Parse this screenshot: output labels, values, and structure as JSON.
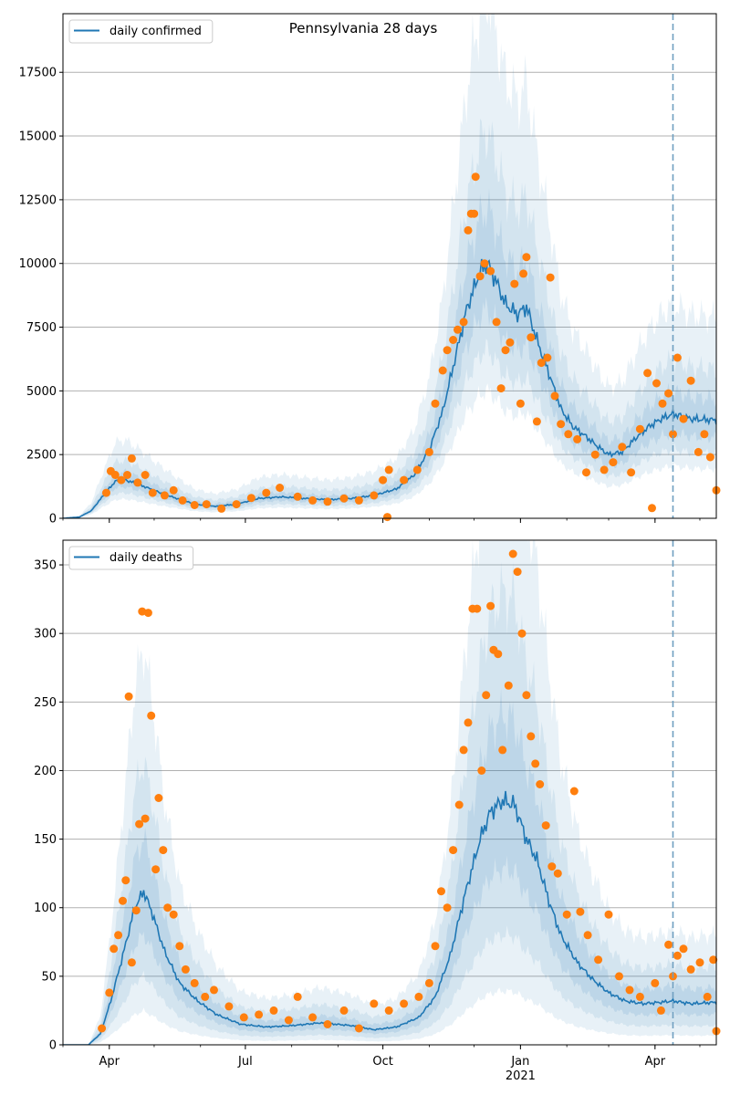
{
  "figure": {
    "title": "Pennsylvania 28 days"
  },
  "colors": {
    "line": "#1f77b4",
    "points": "#ff7f0e",
    "band": "#1f77b4",
    "grid": "#b0b0b0",
    "vline": "#6f9fc0"
  },
  "x_axis": {
    "start": "2020-03-01",
    "end": "2021-05-12",
    "major_ticks": [
      {
        "date": "2020-04-01",
        "label": "Apr"
      },
      {
        "date": "2020-07-01",
        "label": "Jul"
      },
      {
        "date": "2020-10-01",
        "label": "Oct"
      },
      {
        "date": "2021-01-01",
        "label": "Jan"
      },
      {
        "date": "2021-04-01",
        "label": "Apr"
      }
    ],
    "year_label": {
      "date": "2021-01-01",
      "label": "2021"
    },
    "dashed_line_date": "2021-04-13"
  },
  "chart_data": [
    {
      "type": "line",
      "name": "daily confirmed",
      "legend": "top-left",
      "grid": "horizontal",
      "ylim": [
        0,
        19800
      ],
      "yticks": [
        0,
        2500,
        5000,
        7500,
        10000,
        12500,
        15000,
        17500
      ],
      "trend": [
        [
          "2020-03-01",
          0
        ],
        [
          "2020-03-12",
          50
        ],
        [
          "2020-03-20",
          300
        ],
        [
          "2020-03-28",
          900
        ],
        [
          "2020-04-05",
          1450
        ],
        [
          "2020-04-12",
          1500
        ],
        [
          "2020-04-22",
          1300
        ],
        [
          "2020-05-03",
          1050
        ],
        [
          "2020-05-15",
          800
        ],
        [
          "2020-05-28",
          560
        ],
        [
          "2020-06-10",
          470
        ],
        [
          "2020-06-25",
          550
        ],
        [
          "2020-07-10",
          780
        ],
        [
          "2020-07-25",
          840
        ],
        [
          "2020-08-10",
          780
        ],
        [
          "2020-08-25",
          730
        ],
        [
          "2020-09-10",
          780
        ],
        [
          "2020-09-25",
          900
        ],
        [
          "2020-10-10",
          1150
        ],
        [
          "2020-10-22",
          1700
        ],
        [
          "2020-11-01",
          2700
        ],
        [
          "2020-11-10",
          4200
        ],
        [
          "2020-11-18",
          6200
        ],
        [
          "2020-11-26",
          8200
        ],
        [
          "2020-12-05",
          9700
        ],
        [
          "2020-12-10",
          10000
        ],
        [
          "2020-12-15",
          9400
        ],
        [
          "2020-12-22",
          8400
        ],
        [
          "2020-12-30",
          8000
        ],
        [
          "2021-01-05",
          8300
        ],
        [
          "2021-01-12",
          7000
        ],
        [
          "2021-01-20",
          5700
        ],
        [
          "2021-01-28",
          4300
        ],
        [
          "2021-02-05",
          3600
        ],
        [
          "2021-02-14",
          3200
        ],
        [
          "2021-02-22",
          2800
        ],
        [
          "2021-03-01",
          2500
        ],
        [
          "2021-03-10",
          2600
        ],
        [
          "2021-03-20",
          3200
        ],
        [
          "2021-03-28",
          3600
        ],
        [
          "2021-04-05",
          3900
        ],
        [
          "2021-04-13",
          4100
        ],
        [
          "2021-04-25",
          3900
        ],
        [
          "2021-05-12",
          3850
        ]
      ],
      "band_inner": [
        0.82,
        1.22
      ],
      "band_mid": [
        0.66,
        1.52
      ],
      "band_outer": [
        0.5,
        2.05
      ],
      "points": [
        [
          "2020-03-30",
          1000
        ],
        [
          "2020-04-02",
          1850
        ],
        [
          "2020-04-05",
          1700
        ],
        [
          "2020-04-09",
          1500
        ],
        [
          "2020-04-13",
          1700
        ],
        [
          "2020-04-16",
          2350
        ],
        [
          "2020-04-20",
          1400
        ],
        [
          "2020-04-25",
          1700
        ],
        [
          "2020-04-30",
          1000
        ],
        [
          "2020-05-08",
          900
        ],
        [
          "2020-05-14",
          1100
        ],
        [
          "2020-05-20",
          700
        ],
        [
          "2020-05-28",
          520
        ],
        [
          "2020-06-05",
          550
        ],
        [
          "2020-06-15",
          380
        ],
        [
          "2020-06-25",
          550
        ],
        [
          "2020-07-05",
          800
        ],
        [
          "2020-07-15",
          1000
        ],
        [
          "2020-07-24",
          1200
        ],
        [
          "2020-08-05",
          850
        ],
        [
          "2020-08-15",
          700
        ],
        [
          "2020-08-25",
          650
        ],
        [
          "2020-09-05",
          780
        ],
        [
          "2020-09-15",
          700
        ],
        [
          "2020-09-25",
          900
        ],
        [
          "2020-10-01",
          1500
        ],
        [
          "2020-10-05",
          1900
        ],
        [
          "2020-10-04",
          50
        ],
        [
          "2020-10-15",
          1500
        ],
        [
          "2020-10-24",
          1900
        ],
        [
          "2020-11-01",
          2600
        ],
        [
          "2020-11-05",
          4500
        ],
        [
          "2020-11-10",
          5800
        ],
        [
          "2020-11-13",
          6600
        ],
        [
          "2020-11-17",
          7000
        ],
        [
          "2020-11-20",
          7400
        ],
        [
          "2020-11-24",
          7700
        ],
        [
          "2020-11-27",
          11300
        ],
        [
          "2020-11-29",
          11950
        ],
        [
          "2020-12-01",
          11950
        ],
        [
          "2020-12-02",
          13400
        ],
        [
          "2020-12-05",
          9500
        ],
        [
          "2020-12-08",
          10000
        ],
        [
          "2020-12-12",
          9700
        ],
        [
          "2020-12-16",
          7700
        ],
        [
          "2020-12-19",
          5100
        ],
        [
          "2020-12-22",
          6600
        ],
        [
          "2020-12-25",
          6900
        ],
        [
          "2020-12-28",
          9200
        ],
        [
          "2021-01-01",
          4500
        ],
        [
          "2021-01-03",
          9600
        ],
        [
          "2021-01-05",
          10250
        ],
        [
          "2021-01-08",
          7100
        ],
        [
          "2021-01-12",
          3800
        ],
        [
          "2021-01-15",
          6100
        ],
        [
          "2021-01-19",
          6300
        ],
        [
          "2021-01-21",
          9450
        ],
        [
          "2021-01-24",
          4800
        ],
        [
          "2021-01-28",
          3700
        ],
        [
          "2021-02-02",
          3300
        ],
        [
          "2021-02-08",
          3100
        ],
        [
          "2021-02-14",
          1800
        ],
        [
          "2021-02-20",
          2500
        ],
        [
          "2021-02-26",
          1900
        ],
        [
          "2021-03-04",
          2200
        ],
        [
          "2021-03-10",
          2800
        ],
        [
          "2021-03-16",
          1800
        ],
        [
          "2021-03-22",
          3500
        ],
        [
          "2021-03-27",
          5700
        ],
        [
          "2021-03-30",
          400
        ],
        [
          "2021-04-02",
          5300
        ],
        [
          "2021-04-06",
          4500
        ],
        [
          "2021-04-10",
          4900
        ],
        [
          "2021-04-13",
          3300
        ],
        [
          "2021-04-16",
          6300
        ],
        [
          "2021-04-20",
          3900
        ],
        [
          "2021-04-25",
          5400
        ],
        [
          "2021-04-30",
          2600
        ],
        [
          "2021-05-04",
          3300
        ],
        [
          "2021-05-08",
          2400
        ],
        [
          "2021-05-12",
          1100
        ]
      ]
    },
    {
      "type": "line",
      "name": "daily deaths",
      "legend": "top-left",
      "grid": "horizontal",
      "ylim": [
        0,
        368
      ],
      "yticks": [
        0,
        50,
        100,
        150,
        200,
        250,
        300,
        350
      ],
      "trend": [
        [
          "2020-03-01",
          0
        ],
        [
          "2020-03-18",
          0
        ],
        [
          "2020-03-26",
          8
        ],
        [
          "2020-04-02",
          32
        ],
        [
          "2020-04-10",
          65
        ],
        [
          "2020-04-18",
          100
        ],
        [
          "2020-04-24",
          112
        ],
        [
          "2020-04-30",
          95
        ],
        [
          "2020-05-08",
          68
        ],
        [
          "2020-05-18",
          45
        ],
        [
          "2020-05-30",
          32
        ],
        [
          "2020-06-12",
          22
        ],
        [
          "2020-06-28",
          15
        ],
        [
          "2020-07-15",
          13
        ],
        [
          "2020-08-01",
          14
        ],
        [
          "2020-08-20",
          16
        ],
        [
          "2020-09-10",
          14
        ],
        [
          "2020-09-25",
          11
        ],
        [
          "2020-10-10",
          13
        ],
        [
          "2020-10-25",
          20
        ],
        [
          "2020-11-05",
          35
        ],
        [
          "2020-11-15",
          65
        ],
        [
          "2020-11-25",
          110
        ],
        [
          "2020-12-05",
          150
        ],
        [
          "2020-12-12",
          170
        ],
        [
          "2020-12-20",
          178
        ],
        [
          "2020-12-28",
          175
        ],
        [
          "2021-01-05",
          150
        ],
        [
          "2021-01-12",
          135
        ],
        [
          "2021-01-20",
          105
        ],
        [
          "2021-01-28",
          80
        ],
        [
          "2021-02-08",
          60
        ],
        [
          "2021-02-18",
          48
        ],
        [
          "2021-03-01",
          38
        ],
        [
          "2021-03-12",
          32
        ],
        [
          "2021-03-24",
          30
        ],
        [
          "2021-04-05",
          31
        ],
        [
          "2021-04-13",
          32
        ],
        [
          "2021-04-25",
          30
        ],
        [
          "2021-05-12",
          31
        ]
      ],
      "band_inner": [
        0.72,
        1.35
      ],
      "band_mid": [
        0.45,
        1.85
      ],
      "band_outer": [
        0.22,
        2.6
      ],
      "points": [
        [
          "2020-03-27",
          12
        ],
        [
          "2020-04-01",
          38
        ],
        [
          "2020-04-04",
          70
        ],
        [
          "2020-04-07",
          80
        ],
        [
          "2020-04-10",
          105
        ],
        [
          "2020-04-12",
          120
        ],
        [
          "2020-04-14",
          254
        ],
        [
          "2020-04-16",
          60
        ],
        [
          "2020-04-19",
          98
        ],
        [
          "2020-04-21",
          161
        ],
        [
          "2020-04-23",
          316
        ],
        [
          "2020-04-25",
          165
        ],
        [
          "2020-04-27",
          315
        ],
        [
          "2020-04-29",
          240
        ],
        [
          "2020-05-02",
          128
        ],
        [
          "2020-05-04",
          180
        ],
        [
          "2020-05-07",
          142
        ],
        [
          "2020-05-10",
          100
        ],
        [
          "2020-05-14",
          95
        ],
        [
          "2020-05-18",
          72
        ],
        [
          "2020-05-22",
          55
        ],
        [
          "2020-05-28",
          45
        ],
        [
          "2020-06-04",
          35
        ],
        [
          "2020-06-10",
          40
        ],
        [
          "2020-06-20",
          28
        ],
        [
          "2020-06-30",
          20
        ],
        [
          "2020-07-10",
          22
        ],
        [
          "2020-07-20",
          25
        ],
        [
          "2020-07-30",
          18
        ],
        [
          "2020-08-05",
          35
        ],
        [
          "2020-08-15",
          20
        ],
        [
          "2020-08-25",
          15
        ],
        [
          "2020-09-05",
          25
        ],
        [
          "2020-09-15",
          12
        ],
        [
          "2020-09-25",
          30
        ],
        [
          "2020-10-05",
          25
        ],
        [
          "2020-10-15",
          30
        ],
        [
          "2020-10-25",
          35
        ],
        [
          "2020-11-01",
          45
        ],
        [
          "2020-11-05",
          72
        ],
        [
          "2020-11-09",
          112
        ],
        [
          "2020-11-13",
          100
        ],
        [
          "2020-11-17",
          142
        ],
        [
          "2020-11-21",
          175
        ],
        [
          "2020-11-24",
          215
        ],
        [
          "2020-11-27",
          235
        ],
        [
          "2020-11-30",
          318
        ],
        [
          "2020-12-03",
          318
        ],
        [
          "2020-12-06",
          200
        ],
        [
          "2020-12-09",
          255
        ],
        [
          "2020-12-12",
          320
        ],
        [
          "2020-12-14",
          288
        ],
        [
          "2020-12-17",
          285
        ],
        [
          "2020-12-20",
          215
        ],
        [
          "2020-12-24",
          262
        ],
        [
          "2020-12-27",
          358
        ],
        [
          "2020-12-30",
          345
        ],
        [
          "2021-01-02",
          300
        ],
        [
          "2021-01-05",
          255
        ],
        [
          "2021-01-08",
          225
        ],
        [
          "2021-01-11",
          205
        ],
        [
          "2021-01-14",
          190
        ],
        [
          "2021-01-18",
          160
        ],
        [
          "2021-01-22",
          130
        ],
        [
          "2021-01-26",
          125
        ],
        [
          "2021-02-01",
          95
        ],
        [
          "2021-02-06",
          185
        ],
        [
          "2021-02-10",
          97
        ],
        [
          "2021-02-15",
          80
        ],
        [
          "2021-02-22",
          62
        ],
        [
          "2021-03-01",
          95
        ],
        [
          "2021-03-08",
          50
        ],
        [
          "2021-03-15",
          40
        ],
        [
          "2021-03-22",
          35
        ],
        [
          "2021-04-01",
          45
        ],
        [
          "2021-04-05",
          25
        ],
        [
          "2021-04-10",
          73
        ],
        [
          "2021-04-13",
          50
        ],
        [
          "2021-04-16",
          65
        ],
        [
          "2021-04-20",
          70
        ],
        [
          "2021-04-25",
          55
        ],
        [
          "2021-05-01",
          60
        ],
        [
          "2021-05-06",
          35
        ],
        [
          "2021-05-10",
          62
        ],
        [
          "2021-05-12",
          10
        ]
      ]
    }
  ]
}
